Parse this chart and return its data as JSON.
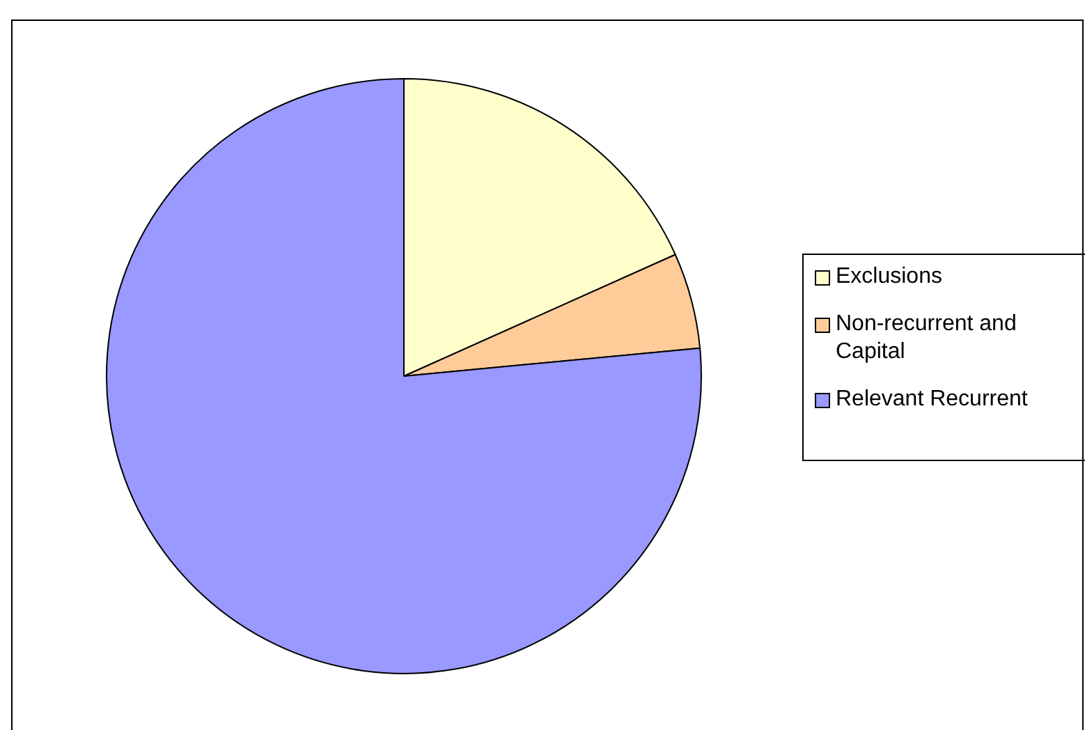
{
  "chart_data": {
    "type": "pie",
    "categories": [
      "Exclusions",
      "Non-recurrent and Capital",
      "Relevant Recurrent"
    ],
    "values": [
      18.3,
      5.2,
      76.5
    ],
    "colors": [
      "#ffffcc",
      "#ffcc99",
      "#9999ff"
    ],
    "legend": "right"
  }
}
